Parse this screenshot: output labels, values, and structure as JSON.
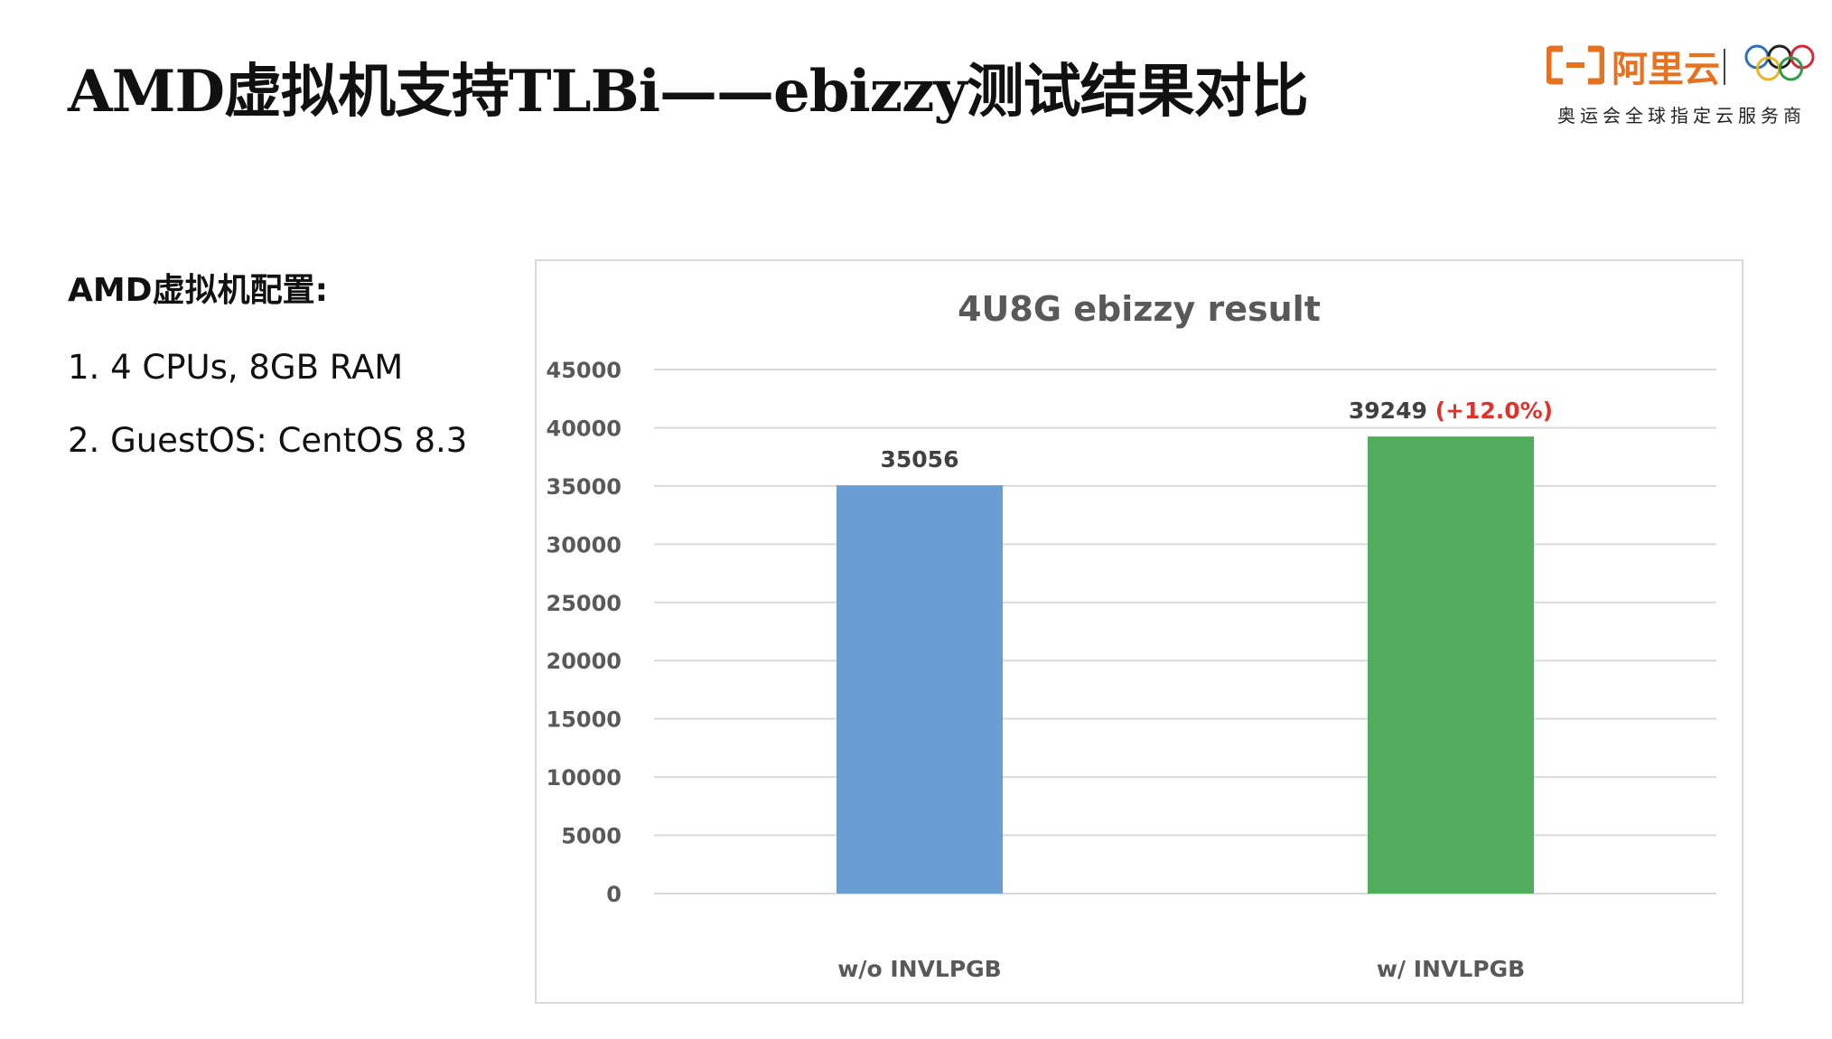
{
  "slide": {
    "title": "AMD虚拟机支持TLBi——ebizzy测试结果对比"
  },
  "logo": {
    "brand_name": "阿里云",
    "tagline": "奥运会全球指定云服务商",
    "mark_icon": "aliyun-logo-icon",
    "rings_icon": "olympic-rings-icon",
    "brand_color": "#E8711F"
  },
  "config": {
    "heading": "AMD虚拟机配置:",
    "items": [
      "1. 4 CPUs, 8GB RAM",
      "2. GuestOS: CentOS 8.3"
    ]
  },
  "chart_data": {
    "type": "bar",
    "title": "4U8G ebizzy result",
    "xlabel": "",
    "ylabel": "",
    "categories": [
      "w/o INVLPGB",
      "w/ INVLPGB"
    ],
    "values": [
      35056,
      39249
    ],
    "value_labels": [
      "35056",
      "39249"
    ],
    "annotations": [
      null,
      "(+12.0%)"
    ],
    "bar_colors": [
      "#6A9ED3",
      "#4FAD5B"
    ],
    "annotation_color": "#E0322C",
    "ylim": [
      0,
      45000
    ],
    "yticks": [
      0,
      5000,
      10000,
      15000,
      20000,
      25000,
      30000,
      35000,
      40000,
      45000
    ],
    "grid": true,
    "legend": "none"
  }
}
